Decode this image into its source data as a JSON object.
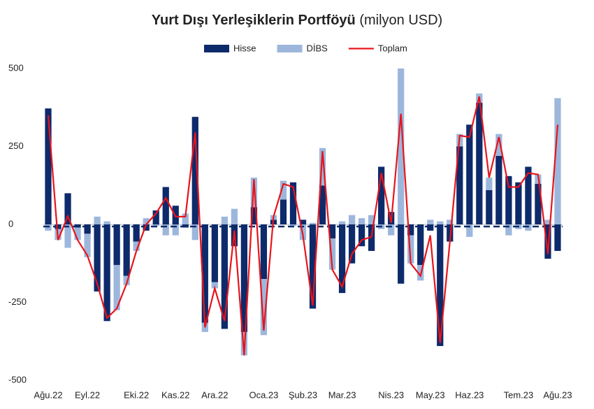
{
  "chart_data": {
    "type": "bar-stacked-line",
    "title": "Yurt Dışı Yerleşiklerin Portföyü",
    "title_unit": "(milyon USD)",
    "categories": [
      "Ağu.22",
      null,
      null,
      null,
      "Eyl.22",
      null,
      null,
      null,
      null,
      "Eki.22",
      null,
      null,
      null,
      "Kas.22",
      null,
      null,
      null,
      "Ara.22",
      null,
      null,
      null,
      null,
      "Oca.23",
      null,
      null,
      null,
      "Şub.23",
      null,
      null,
      null,
      "Mar.23",
      null,
      null,
      null,
      null,
      "Nis.23",
      null,
      null,
      null,
      "May.23",
      null,
      null,
      null,
      "Haz.23",
      null,
      null,
      null,
      null,
      "Tem.23",
      null,
      null,
      null,
      "Ağu.23"
    ],
    "series": [
      {
        "name": "Hisse",
        "kind": "bar",
        "color": "#0d2a6b",
        "values": [
          372,
          -15,
          100,
          -10,
          -30,
          -215,
          -310,
          -130,
          -165,
          -55,
          -20,
          45,
          120,
          60,
          -10,
          345,
          -315,
          -185,
          -335,
          -70,
          -345,
          55,
          -175,
          15,
          80,
          135,
          15,
          -270,
          125,
          -45,
          -220,
          -125,
          -70,
          -85,
          185,
          40,
          -190,
          -35,
          -130,
          -20,
          -390,
          -55,
          250,
          320,
          390,
          110,
          220,
          155,
          135,
          185,
          130,
          -110,
          -85
        ]
      },
      {
        "name": "DİBS",
        "kind": "bar",
        "color": "#9db7dc",
        "values": [
          -20,
          -35,
          -75,
          -40,
          -75,
          25,
          10,
          -145,
          -30,
          -30,
          20,
          -5,
          -35,
          -35,
          35,
          -50,
          -30,
          -20,
          25,
          50,
          -75,
          95,
          -180,
          15,
          60,
          -5,
          -50,
          5,
          120,
          -100,
          10,
          30,
          20,
          30,
          -15,
          -35,
          500,
          -90,
          -50,
          15,
          10,
          15,
          40,
          -40,
          30,
          40,
          70,
          -35,
          -15,
          -20,
          30,
          15,
          405
        ]
      },
      {
        "name": "Toplam",
        "kind": "line",
        "color": "#e8141b",
        "values": [
          350,
          -50,
          27,
          -50,
          -100,
          -190,
          -300,
          -270,
          -190,
          -85,
          0,
          35,
          85,
          25,
          25,
          295,
          -330,
          -205,
          -310,
          -20,
          -420,
          145,
          -340,
          25,
          130,
          120,
          -35,
          -260,
          235,
          -145,
          -200,
          -95,
          -50,
          -40,
          165,
          5,
          355,
          -125,
          -165,
          -35,
          -380,
          -55,
          285,
          280,
          410,
          150,
          280,
          120,
          120,
          165,
          160,
          -95,
          320
        ]
      }
    ],
    "ylim": [
      -500,
      500
    ],
    "yticks": [
      -500,
      -250,
      0,
      250,
      500
    ],
    "legend": "top"
  }
}
